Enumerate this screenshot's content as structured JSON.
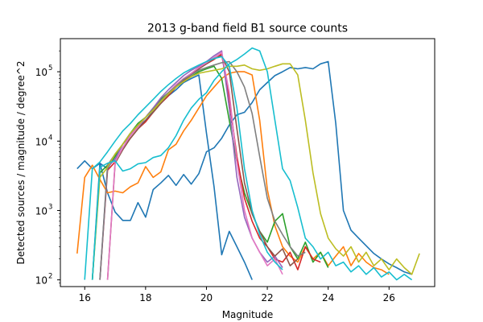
{
  "chart_data": {
    "type": "line",
    "title": "2013 g-band field B1 source counts",
    "xlabel": "Magnitude",
    "ylabel": "Detected sources / magnitude / degree^2",
    "xlim": [
      15.2,
      27.5
    ],
    "ylim": [
      80,
      300000
    ],
    "yscale": "log",
    "grid": false,
    "legend": "none",
    "xticks": [
      "16",
      "18",
      "20",
      "22",
      "24",
      "26"
    ],
    "yticks": [
      {
        "base": "10",
        "exp": "2",
        "value": 100
      },
      {
        "base": "10",
        "exp": "3",
        "value": 1000
      },
      {
        "base": "10",
        "exp": "4",
        "value": 10000
      },
      {
        "base": "10",
        "exp": "5",
        "value": 100000
      }
    ],
    "colors": [
      "#1f77b4",
      "#ff7f0e",
      "#2ca02c",
      "#d62728",
      "#9467bd",
      "#8c564b",
      "#e377c2",
      "#7f7f7f",
      "#bcbd22",
      "#17becf"
    ],
    "series": [
      {
        "color": "#1f77b4",
        "x": [
          15.75,
          16.0,
          16.25,
          16.5,
          16.75,
          17.0,
          17.25,
          17.5,
          17.75,
          18.0,
          18.25,
          18.5,
          18.75,
          19.0,
          19.25,
          19.5,
          19.75,
          20.0,
          20.25,
          20.5,
          20.75,
          21.0,
          21.25,
          21.5,
          21.75,
          22.0,
          22.25,
          22.5,
          22.75,
          23.0,
          23.25,
          23.5,
          23.75,
          24.0,
          24.25,
          24.5,
          24.75,
          25.0,
          25.25,
          25.5,
          25.75,
          26.0,
          26.25,
          26.5,
          26.75
        ],
        "y": [
          4000,
          5200,
          4000,
          4800,
          1800,
          950,
          720,
          720,
          1300,
          800,
          2000,
          2500,
          3200,
          2300,
          3300,
          2400,
          3400,
          7000,
          8000,
          11000,
          17000,
          24000,
          26000,
          36000,
          55000,
          70000,
          88000,
          100000,
          115000,
          110000,
          115000,
          110000,
          130000,
          140000,
          18000,
          1000,
          520,
          400,
          310,
          240,
          200,
          170,
          150,
          130,
          120
        ]
      },
      {
        "color": "#1f77b4",
        "x": [
          16.25,
          16.5,
          16.75,
          17.0,
          17.25,
          17.5,
          17.75,
          18.0,
          18.25,
          18.5,
          18.75,
          19.0,
          19.25,
          19.5,
          19.75,
          20.0,
          20.25,
          20.5,
          20.75,
          21.0,
          21.25,
          21.5
        ],
        "y": [
          100,
          4800,
          4000,
          6000,
          9000,
          13000,
          16000,
          20000,
          27000,
          35000,
          45000,
          55000,
          70000,
          80000,
          90000,
          13000,
          2200,
          230,
          500,
          300,
          180,
          100
        ]
      },
      {
        "color": "#ff7f0e",
        "x": [
          15.75,
          16.0,
          16.25,
          16.5,
          16.75,
          17.0,
          17.25,
          17.5,
          17.75,
          18.0,
          18.25,
          18.5,
          18.75,
          19.0,
          19.25,
          19.5,
          19.75,
          20.0,
          20.25,
          20.5,
          20.75,
          21.0,
          21.25,
          21.5,
          21.75,
          22.0,
          22.25,
          22.5,
          22.75,
          23.0,
          23.25,
          23.5,
          23.75,
          24.0,
          24.25,
          24.5,
          24.75,
          25.0,
          25.25,
          25.5,
          25.75,
          26.0
        ],
        "y": [
          240,
          3000,
          4500,
          2800,
          1800,
          1900,
          1800,
          2200,
          2500,
          4300,
          3000,
          3600,
          7500,
          9000,
          14000,
          20000,
          30000,
          45000,
          60000,
          80000,
          95000,
          100000,
          100000,
          90000,
          20000,
          2000,
          600,
          300,
          220,
          180,
          300,
          200,
          250,
          160,
          220,
          300,
          160,
          240,
          180,
          150,
          140,
          120
        ]
      },
      {
        "color": "#2ca02c",
        "x": [
          16.25,
          16.5,
          16.75,
          17.0,
          17.25,
          17.5,
          17.75,
          18.0,
          18.25,
          18.5,
          18.75,
          19.0,
          19.25,
          19.5,
          19.75,
          20.0,
          20.25,
          20.5,
          20.75,
          21.0,
          21.25,
          21.5,
          21.75,
          22.0,
          22.25,
          22.5,
          22.75,
          23.0,
          23.25,
          23.5,
          23.75,
          24.0
        ],
        "y": [
          100,
          3500,
          4500,
          6000,
          9000,
          13000,
          18000,
          22000,
          30000,
          40000,
          50000,
          60000,
          75000,
          85000,
          100000,
          110000,
          120000,
          80000,
          20000,
          5000,
          1800,
          900,
          500,
          350,
          700,
          900,
          300,
          200,
          350,
          180,
          250,
          150
        ]
      },
      {
        "color": "#d62728",
        "x": [
          16.5,
          16.75,
          17.0,
          17.25,
          17.5,
          17.75,
          18.0,
          18.25,
          18.5,
          18.75,
          19.0,
          19.25,
          19.5,
          19.75,
          20.0,
          20.25,
          20.5,
          20.75,
          21.0,
          21.25,
          21.5,
          21.75,
          22.0,
          22.25,
          22.5,
          22.75,
          23.0,
          23.25,
          23.5,
          23.75
        ],
        "y": [
          100,
          3800,
          5000,
          8000,
          11000,
          15000,
          19000,
          26000,
          35000,
          45000,
          60000,
          75000,
          90000,
          110000,
          130000,
          150000,
          180000,
          40000,
          6000,
          1500,
          700,
          400,
          300,
          200,
          180,
          250,
          140,
          300,
          200,
          180
        ]
      },
      {
        "color": "#9467bd",
        "x": [
          16.5,
          16.75,
          17.0,
          17.25,
          17.5,
          17.75,
          18.0,
          18.25,
          18.5,
          18.75,
          19.0,
          19.25,
          19.5,
          19.75,
          20.0,
          20.25,
          20.5,
          20.75,
          21.0,
          21.25,
          21.5,
          21.75,
          22.0,
          22.25,
          22.5
        ],
        "y": [
          100,
          4200,
          5500,
          9000,
          12000,
          17000,
          22000,
          30000,
          42000,
          55000,
          70000,
          88000,
          105000,
          120000,
          140000,
          170000,
          200000,
          30000,
          3000,
          800,
          400,
          250,
          180,
          220,
          150
        ]
      },
      {
        "color": "#8c564b",
        "x": [
          16.75,
          17.0,
          17.25,
          17.5,
          17.75,
          18.0,
          18.25,
          18.5,
          18.75,
          19.0,
          19.25,
          19.5,
          19.75,
          20.0,
          20.25,
          20.5,
          20.75,
          21.0,
          21.25,
          21.5,
          21.75,
          22.0,
          22.25,
          22.5,
          22.75,
          23.0
        ],
        "y": [
          100,
          4800,
          7500,
          11000,
          15000,
          20000,
          26000,
          35000,
          47000,
          60000,
          75000,
          92000,
          110000,
          130000,
          155000,
          170000,
          100000,
          15000,
          2500,
          900,
          500,
          300,
          220,
          280,
          160,
          200
        ]
      },
      {
        "color": "#e377c2",
        "x": [
          16.75,
          17.0,
          17.25,
          17.5,
          17.75,
          18.0,
          18.25,
          18.5,
          18.75,
          19.0,
          19.25,
          19.5,
          19.75,
          20.0,
          20.25,
          20.5,
          20.75,
          21.0,
          21.25,
          21.5,
          21.75,
          22.0,
          22.25,
          22.5
        ],
        "y": [
          100,
          5000,
          8000,
          12000,
          16000,
          22000,
          28000,
          38000,
          50000,
          65000,
          80000,
          95000,
          115000,
          135000,
          160000,
          190000,
          50000,
          5000,
          1000,
          400,
          250,
          160,
          200,
          120
        ]
      },
      {
        "color": "#7f7f7f",
        "x": [
          16.5,
          16.75,
          17.0,
          17.25,
          17.5,
          17.75,
          18.0,
          18.25,
          18.5,
          18.75,
          19.0,
          19.25,
          19.5,
          19.75,
          20.0,
          20.25,
          20.5,
          20.75,
          21.0,
          21.25,
          21.5,
          21.75,
          22.0,
          22.25,
          22.5,
          22.75,
          23.0,
          23.25
        ],
        "y": [
          100,
          4500,
          6500,
          9000,
          13000,
          17000,
          22000,
          29000,
          38000,
          50000,
          62000,
          78000,
          90000,
          105000,
          115000,
          125000,
          135000,
          140000,
          100000,
          60000,
          25000,
          6000,
          1500,
          700,
          450,
          300,
          220,
          250
        ]
      },
      {
        "color": "#bcbd22",
        "x": [
          16.25,
          16.5,
          16.75,
          17.0,
          17.25,
          17.5,
          17.75,
          18.0,
          18.25,
          18.5,
          18.75,
          19.0,
          19.25,
          19.5,
          19.75,
          20.0,
          20.25,
          20.5,
          20.75,
          21.0,
          21.25,
          21.5,
          21.75,
          22.0,
          22.25,
          22.5,
          22.75,
          23.0,
          23.25,
          23.5,
          23.75,
          24.0,
          24.25,
          24.5,
          24.75,
          25.0,
          25.25,
          25.5,
          25.75,
          26.0,
          26.25,
          26.5,
          26.75,
          27.0
        ],
        "y": [
          100,
          3000,
          4200,
          6500,
          9000,
          13000,
          17000,
          22000,
          28000,
          37000,
          48000,
          60000,
          72000,
          85000,
          95000,
          100000,
          105000,
          110000,
          120000,
          120000,
          125000,
          110000,
          105000,
          110000,
          120000,
          130000,
          130000,
          90000,
          20000,
          3500,
          900,
          400,
          280,
          220,
          300,
          180,
          250,
          160,
          200,
          140,
          200,
          150,
          120,
          240
        ]
      },
      {
        "color": "#17becf",
        "x": [
          16.25,
          16.5,
          16.75,
          17.0,
          17.25,
          17.5,
          17.75,
          18.0,
          18.25,
          18.5,
          18.75,
          19.0,
          19.25,
          19.5,
          19.75,
          20.0,
          20.25,
          20.5,
          20.75,
          21.0,
          21.25,
          21.5,
          21.75,
          22.0,
          22.25,
          22.5,
          22.75,
          23.0,
          23.25,
          23.5,
          23.75,
          24.0,
          24.25,
          24.5,
          24.75,
          25.0,
          25.25,
          25.5,
          25.75,
          26.0,
          26.25,
          26.5,
          26.75
        ],
        "y": [
          100,
          4200,
          4800,
          5200,
          3700,
          4000,
          4700,
          4900,
          5800,
          6200,
          8000,
          12000,
          20000,
          30000,
          40000,
          50000,
          75000,
          100000,
          130000,
          150000,
          180000,
          220000,
          200000,
          100000,
          20000,
          4000,
          2700,
          1100,
          400,
          300,
          200,
          250,
          160,
          180,
          130,
          160,
          120,
          150,
          110,
          130,
          100,
          120,
          100
        ]
      },
      {
        "color": "#17becf",
        "x": [
          16.0,
          16.25,
          16.5,
          16.75,
          17.0,
          17.25,
          17.5,
          17.75,
          18.0,
          18.25,
          18.5,
          18.75,
          19.0,
          19.25,
          19.5,
          19.75,
          20.0,
          20.25,
          20.5,
          20.75,
          21.0,
          21.25,
          21.5,
          21.75,
          22.0,
          22.25,
          22.5
        ],
        "y": [
          100,
          4000,
          5000,
          7000,
          10000,
          14000,
          18000,
          24000,
          31000,
          40000,
          52000,
          65000,
          80000,
          96000,
          110000,
          125000,
          140000,
          155000,
          165000,
          120000,
          30000,
          4000,
          1000,
          450,
          250,
          180,
          140
        ]
      }
    ]
  }
}
